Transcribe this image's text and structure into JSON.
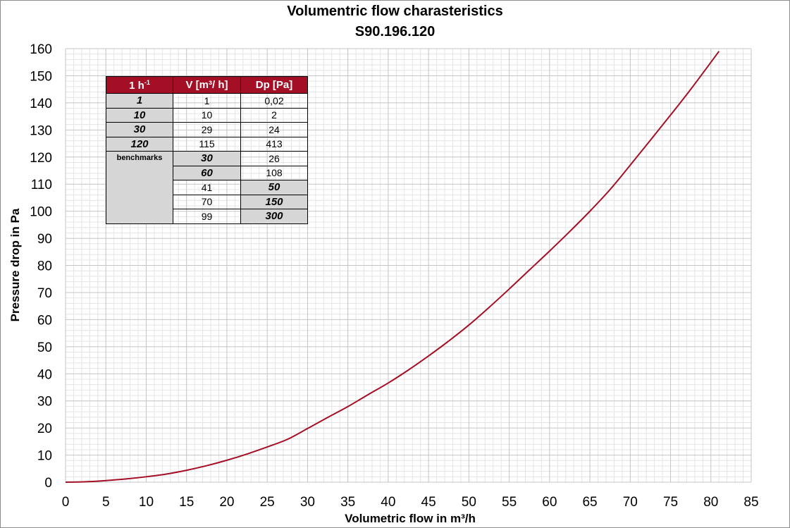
{
  "chart_data": {
    "type": "line",
    "title": "Volumentric flow charasteristics",
    "subtitle": "S90.196.120",
    "xlabel": "Volumetric flow in m³/h",
    "ylabel": "Pressure drop in Pa",
    "xlim": [
      0,
      85
    ],
    "ylim": [
      0,
      160
    ],
    "x_ticks": [
      0,
      5,
      10,
      15,
      20,
      25,
      30,
      35,
      40,
      45,
      50,
      55,
      60,
      65,
      70,
      75,
      80,
      85
    ],
    "y_ticks": [
      0,
      10,
      20,
      30,
      40,
      50,
      60,
      70,
      80,
      90,
      100,
      110,
      120,
      130,
      140,
      150,
      160
    ],
    "grid": true,
    "series": [
      {
        "color": "#a50f26",
        "x": [
          0,
          2.5,
          5,
          7.5,
          10,
          12.5,
          15,
          17.5,
          20,
          22.5,
          25,
          27.5,
          30,
          32.5,
          35,
          37.5,
          40,
          42.5,
          45,
          47.5,
          50,
          52.5,
          55,
          57.5,
          60,
          62.5,
          65,
          67.5,
          70,
          72.5,
          75,
          77.5,
          81
        ],
        "y": [
          0,
          0.15,
          0.6,
          1.2,
          2.0,
          3.0,
          4.4,
          6.1,
          8.1,
          10.4,
          13.0,
          15.8,
          19.8,
          23.9,
          27.9,
          32.3,
          36.6,
          41.4,
          46.6,
          52.1,
          58.0,
          64.5,
          71.3,
          78.3,
          85.3,
          92.5,
          100.0,
          108.0,
          117.0,
          126.2,
          135.5,
          145.0,
          159.0
        ]
      }
    ],
    "table": {
      "header": [
        "1 h",
        "-1",
        "V [m³/ h]",
        "Dp [Pa]"
      ],
      "rows": [
        [
          "1",
          "1",
          "0,02"
        ],
        [
          "10",
          "10",
          "2"
        ],
        [
          "30",
          "29",
          "24"
        ],
        [
          "120",
          "115",
          "413"
        ]
      ],
      "benchmarks_label": "benchmarks",
      "benchmark_rows": [
        [
          "30",
          "26"
        ],
        [
          "60",
          "108"
        ],
        [
          "41",
          "50"
        ],
        [
          "70",
          "150"
        ],
        [
          "99",
          "300"
        ]
      ]
    }
  }
}
